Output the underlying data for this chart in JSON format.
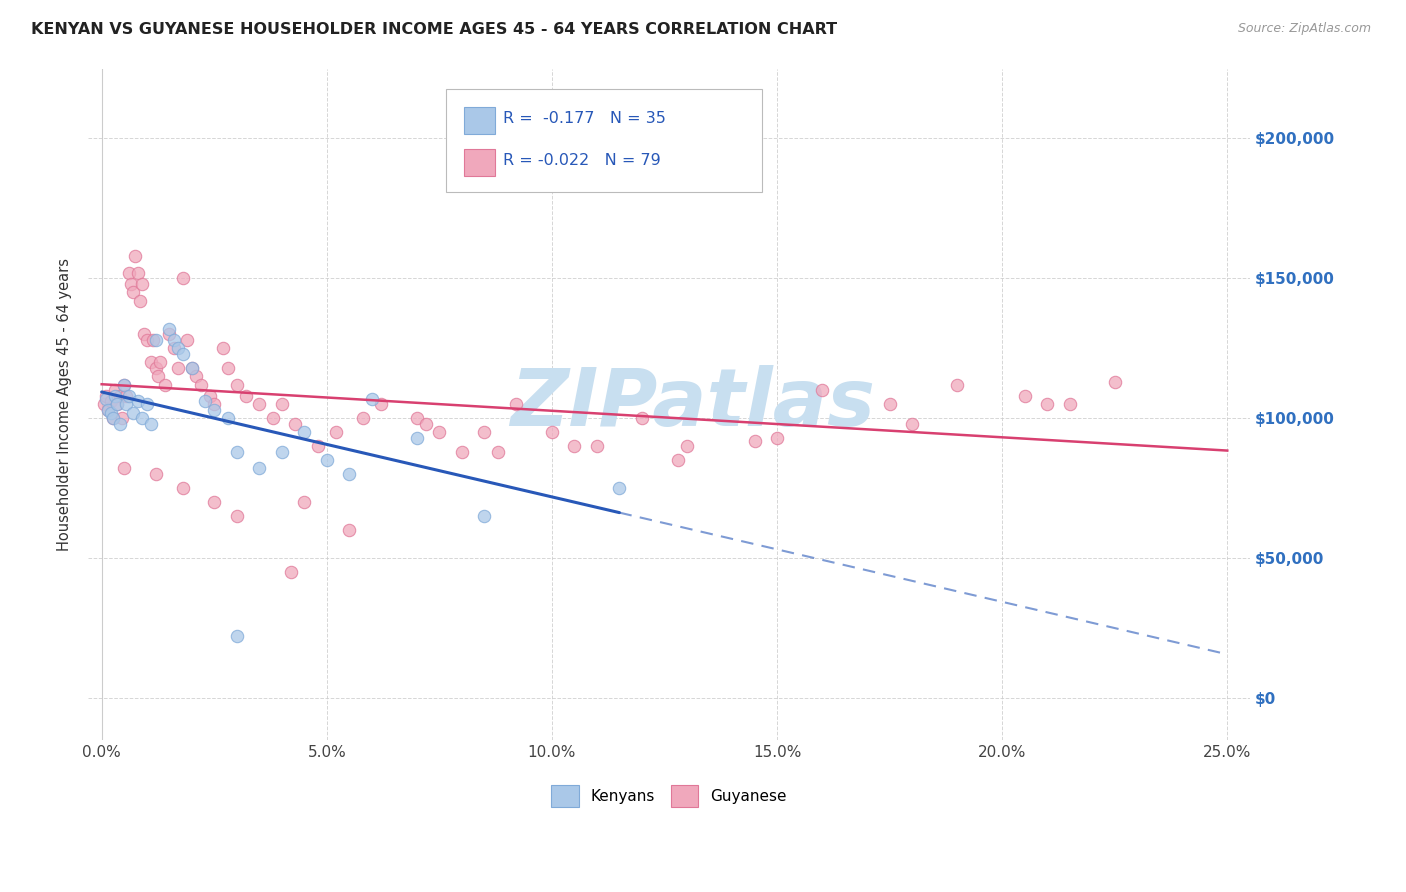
{
  "title": "KENYAN VS GUYANESE HOUSEHOLDER INCOME AGES 45 - 64 YEARS CORRELATION CHART",
  "source_text": "Source: ZipAtlas.com",
  "ylabel": "Householder Income Ages 45 - 64 years",
  "xlabel_ticks": [
    "0.0%",
    "5.0%",
    "10.0%",
    "15.0%",
    "20.0%",
    "25.0%"
  ],
  "xlabel_vals": [
    0.0,
    5.0,
    10.0,
    15.0,
    20.0,
    25.0
  ],
  "ylabel_ticks": [
    "$0",
    "$50,000",
    "$100,000",
    "$150,000",
    "$200,000"
  ],
  "ylabel_vals": [
    0,
    50000,
    100000,
    150000,
    200000
  ],
  "xlim": [
    -0.3,
    25.5
  ],
  "ylim": [
    -15000,
    225000
  ],
  "kenyan_R": -0.177,
  "kenyan_N": 35,
  "guyanese_R": -0.022,
  "guyanese_N": 79,
  "kenyan_color": "#aac8e8",
  "kenyan_edge": "#80aad8",
  "guyanese_color": "#f0a8bc",
  "guyanese_edge": "#e07898",
  "kenyan_line_color": "#2858b8",
  "guyanese_line_color": "#d84070",
  "watermark_color": "#c8dff0",
  "bg_color": "#ffffff",
  "grid_color": "#cccccc",
  "kenyan_x": [
    0.1,
    0.15,
    0.2,
    0.25,
    0.3,
    0.35,
    0.4,
    0.5,
    0.55,
    0.6,
    0.7,
    0.8,
    0.9,
    1.0,
    1.1,
    1.2,
    1.5,
    1.6,
    1.7,
    1.8,
    2.0,
    2.3,
    2.5,
    2.8,
    3.0,
    3.5,
    4.0,
    4.5,
    5.0,
    5.5,
    6.0,
    7.0,
    8.5,
    11.5,
    3.0
  ],
  "kenyan_y": [
    107000,
    103000,
    102000,
    100000,
    108000,
    105000,
    98000,
    112000,
    105000,
    108000,
    102000,
    106000,
    100000,
    105000,
    98000,
    128000,
    132000,
    128000,
    125000,
    123000,
    118000,
    106000,
    103000,
    100000,
    88000,
    82000,
    88000,
    95000,
    85000,
    80000,
    107000,
    93000,
    65000,
    75000,
    22000
  ],
  "guyanese_x": [
    0.05,
    0.1,
    0.15,
    0.2,
    0.25,
    0.3,
    0.35,
    0.4,
    0.45,
    0.5,
    0.55,
    0.6,
    0.65,
    0.7,
    0.75,
    0.8,
    0.85,
    0.9,
    0.95,
    1.0,
    1.1,
    1.15,
    1.2,
    1.25,
    1.3,
    1.4,
    1.5,
    1.6,
    1.7,
    1.8,
    1.9,
    2.0,
    2.1,
    2.2,
    2.4,
    2.5,
    2.7,
    2.8,
    3.0,
    3.2,
    3.5,
    3.8,
    4.0,
    4.3,
    4.8,
    5.2,
    5.8,
    6.2,
    7.0,
    7.5,
    8.0,
    8.5,
    9.2,
    10.0,
    11.0,
    12.0,
    13.0,
    14.5,
    16.0,
    17.5,
    19.0,
    20.5,
    21.0,
    22.5,
    0.5,
    1.2,
    1.8,
    2.5,
    3.0,
    4.5,
    5.5,
    7.2,
    8.8,
    10.5,
    12.8,
    15.0,
    18.0,
    21.5,
    4.2
  ],
  "guyanese_y": [
    105000,
    108000,
    103000,
    106000,
    100000,
    110000,
    105000,
    108000,
    100000,
    112000,
    108000,
    152000,
    148000,
    145000,
    158000,
    152000,
    142000,
    148000,
    130000,
    128000,
    120000,
    128000,
    118000,
    115000,
    120000,
    112000,
    130000,
    125000,
    118000,
    150000,
    128000,
    118000,
    115000,
    112000,
    108000,
    105000,
    125000,
    118000,
    112000,
    108000,
    105000,
    100000,
    105000,
    98000,
    90000,
    95000,
    100000,
    105000,
    100000,
    95000,
    88000,
    95000,
    105000,
    95000,
    90000,
    100000,
    90000,
    92000,
    110000,
    105000,
    112000,
    108000,
    105000,
    113000,
    82000,
    80000,
    75000,
    70000,
    65000,
    70000,
    60000,
    98000,
    88000,
    90000,
    85000,
    93000,
    98000,
    105000,
    45000
  ]
}
